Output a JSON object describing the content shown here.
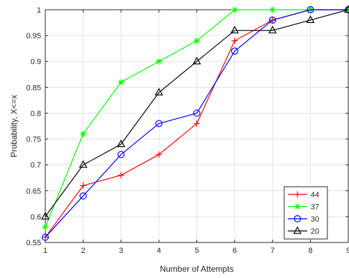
{
  "chart_data": {
    "type": "line",
    "title": "",
    "xlabel": "Number of Attempts",
    "ylabel": "Probability, X<=x",
    "x": [
      1,
      2,
      3,
      4,
      5,
      6,
      7,
      8,
      9
    ],
    "xlim": [
      1,
      9
    ],
    "ylim": [
      0.55,
      1
    ],
    "xticks": [
      1,
      2,
      3,
      4,
      5,
      6,
      7,
      8,
      9
    ],
    "yticks": [
      0.55,
      0.6,
      0.65,
      0.7,
      0.75,
      0.8,
      0.85,
      0.9,
      0.95,
      1
    ],
    "ytick_labels": [
      "0.55",
      "0.6",
      "0.65",
      "0.7",
      "0.75",
      "0.8",
      "0.85",
      "0.9",
      "0.95",
      "1"
    ],
    "grid": true,
    "legend_position": "bottom-right",
    "series": [
      {
        "name": "44",
        "color": "#ff0000",
        "marker": "plus",
        "values": [
          0.56,
          0.66,
          0.68,
          0.72,
          0.78,
          0.94,
          0.98,
          1.0,
          1.0
        ]
      },
      {
        "name": "37",
        "color": "#00ff00",
        "marker": "asterisk",
        "values": [
          0.58,
          0.76,
          0.86,
          0.9,
          0.94,
          1.0,
          1.0,
          1.0,
          1.0
        ]
      },
      {
        "name": "30",
        "color": "#0000ff",
        "marker": "circle",
        "values": [
          0.56,
          0.64,
          0.72,
          0.78,
          0.8,
          0.92,
          0.98,
          1.0,
          1.0
        ]
      },
      {
        "name": "20",
        "color": "#000000",
        "marker": "triangle",
        "values": [
          0.6,
          0.7,
          0.74,
          0.84,
          0.9,
          0.96,
          0.96,
          0.98,
          1.0
        ]
      }
    ]
  }
}
